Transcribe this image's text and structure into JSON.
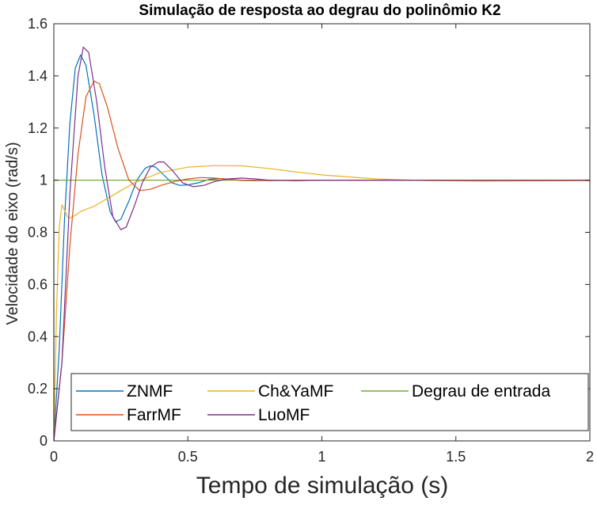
{
  "chart_data": {
    "type": "line",
    "title": "Simulação de resposta ao degrau do polinômio K2",
    "xlabel": "Tempo de simulação (s)",
    "ylabel": "Velocidade do eixo (rad/s)",
    "xlim": [
      0,
      2
    ],
    "ylim": [
      0,
      1.6
    ],
    "xticks": [
      0,
      0.5,
      1,
      1.5,
      2
    ],
    "xtick_labels": [
      "0",
      "0.5",
      "1",
      "1.5",
      "2"
    ],
    "yticks": [
      0,
      0.2,
      0.4,
      0.6,
      0.8,
      1,
      1.2,
      1.4,
      1.6
    ],
    "ytick_labels": [
      "0",
      "0.2",
      "0.4",
      "0.6",
      "0.8",
      "1",
      "1.2",
      "1.4",
      "1.6"
    ],
    "grid": false,
    "legend_position": "bottom",
    "series": [
      {
        "name": "ZNMF",
        "color": "#0072BD",
        "x": [
          0,
          0.02,
          0.04,
          0.06,
          0.08,
          0.1,
          0.12,
          0.15,
          0.18,
          0.21,
          0.23,
          0.25,
          0.28,
          0.31,
          0.34,
          0.36,
          0.38,
          0.41,
          0.44,
          0.47,
          0.5,
          0.54,
          0.58,
          0.62,
          0.66,
          0.7,
          0.75,
          0.8,
          0.9,
          1.0,
          1.2,
          1.5,
          2.0
        ],
        "y": [
          0,
          0.35,
          0.85,
          1.22,
          1.43,
          1.48,
          1.44,
          1.25,
          1.02,
          0.88,
          0.84,
          0.85,
          0.92,
          1.0,
          1.045,
          1.055,
          1.05,
          1.02,
          0.99,
          0.98,
          0.982,
          0.99,
          1.003,
          1.006,
          1.003,
          0.999,
          0.998,
          1.0,
          1.0,
          1.0,
          1.0,
          1.0,
          1.0
        ]
      },
      {
        "name": "Ch&YaMF",
        "color": "#EDB120",
        "x": [
          0,
          0.01,
          0.02,
          0.03,
          0.04,
          0.05,
          0.06,
          0.08,
          0.1,
          0.15,
          0.2,
          0.25,
          0.3,
          0.35,
          0.4,
          0.5,
          0.6,
          0.7,
          0.8,
          0.9,
          1.0,
          1.2,
          1.4,
          1.6,
          1.8,
          2.0
        ],
        "y": [
          0,
          0.5,
          0.82,
          0.905,
          0.885,
          0.86,
          0.855,
          0.865,
          0.88,
          0.9,
          0.93,
          0.96,
          0.99,
          1.01,
          1.03,
          1.05,
          1.056,
          1.055,
          1.045,
          1.032,
          1.02,
          1.005,
          0.998,
          0.996,
          0.997,
          0.998
        ]
      },
      {
        "name": "Degrau de entrada",
        "color": "#77AC30",
        "x": [
          0,
          0.0,
          2.0
        ],
        "y": [
          0,
          1,
          1
        ]
      },
      {
        "name": "FarrMF",
        "color": "#D95319",
        "x": [
          0,
          0.03,
          0.06,
          0.09,
          0.12,
          0.15,
          0.17,
          0.2,
          0.24,
          0.28,
          0.32,
          0.36,
          0.4,
          0.45,
          0.5,
          0.55,
          0.6,
          0.7,
          0.8,
          0.9,
          1.0,
          1.2,
          1.5,
          2.0
        ],
        "y": [
          0,
          0.3,
          0.75,
          1.1,
          1.32,
          1.38,
          1.37,
          1.28,
          1.12,
          1.0,
          0.96,
          0.965,
          0.98,
          0.995,
          1.005,
          1.01,
          1.008,
          1.0,
          0.998,
          1.0,
          1.0,
          1.0,
          1.0,
          1.0
        ]
      },
      {
        "name": "LuoMF",
        "color": "#7E2F8E",
        "x": [
          0,
          0.03,
          0.06,
          0.09,
          0.11,
          0.13,
          0.16,
          0.19,
          0.22,
          0.25,
          0.27,
          0.3,
          0.33,
          0.36,
          0.39,
          0.41,
          0.44,
          0.48,
          0.52,
          0.56,
          0.6,
          0.65,
          0.7,
          0.75,
          0.8,
          0.9,
          1.0,
          1.2,
          2.0
        ],
        "y": [
          0,
          0.3,
          0.95,
          1.4,
          1.51,
          1.49,
          1.3,
          1.05,
          0.86,
          0.81,
          0.82,
          0.9,
          0.99,
          1.05,
          1.07,
          1.07,
          1.04,
          0.99,
          0.975,
          0.98,
          0.995,
          1.005,
          1.008,
          1.005,
          1.0,
          0.998,
          1.0,
          1.0,
          1.0
        ]
      }
    ]
  }
}
